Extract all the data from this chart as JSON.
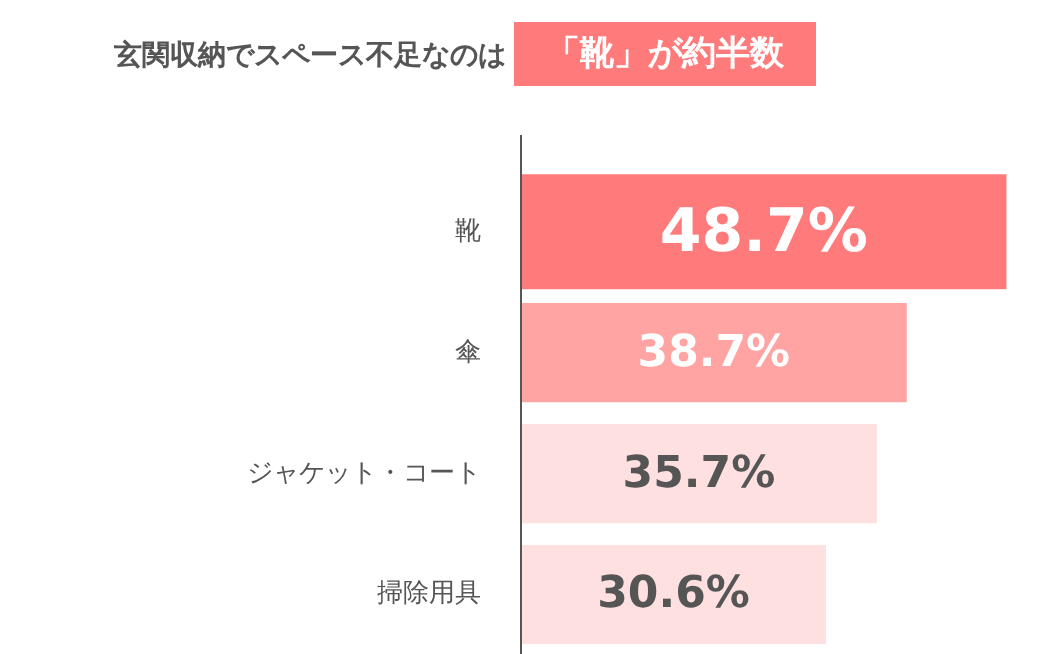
{
  "chart_data": {
    "type": "bar",
    "orientation": "horizontal",
    "title": "玄関収納でスペース不足なのは",
    "subtitle": "「靴」が約半数",
    "categories": [
      "靴",
      "傘",
      "ジャケット・コート",
      "掃除用具"
    ],
    "values": [
      48.7,
      38.7,
      35.7,
      30.6
    ],
    "colors": [
      "#ff7b7b",
      "#ffa3a3",
      "#ffe0e0",
      "#ffe0e0"
    ],
    "value_labels": [
      "48.7%",
      "38.7%",
      "35.7%",
      "30.6%"
    ],
    "tick_labels": "y",
    "grid": false
  }
}
